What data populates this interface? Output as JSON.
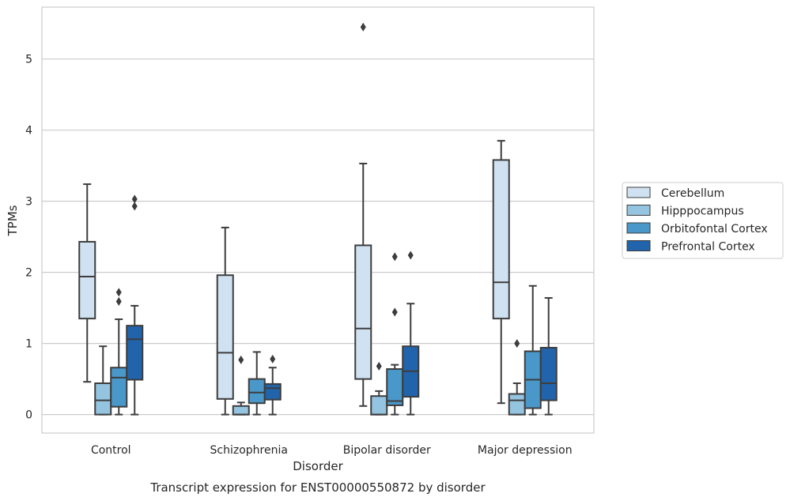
{
  "chart_data": {
    "type": "box",
    "title": "",
    "caption": "Transcript expression for ENST00000550872 by disorder",
    "xlabel": "Disorder",
    "ylabel": "TPMs",
    "ylim": [
      -0.26,
      5.73
    ],
    "yticks": [
      0,
      1,
      2,
      3,
      4,
      5
    ],
    "grid": true,
    "legend_position": "right",
    "categories": [
      "Control",
      "Schizophrenia",
      "Bipolar disorder",
      "Major depression"
    ],
    "series": [
      {
        "name": "Cerebellum",
        "color": "#d0e1f2",
        "boxes": [
          {
            "whisker_low": 0.46,
            "q1": 1.35,
            "median": 1.94,
            "q3": 2.43,
            "whisker_high": 3.24,
            "outliers": []
          },
          {
            "whisker_low": 0.0,
            "q1": 0.22,
            "median": 0.87,
            "q3": 1.96,
            "whisker_high": 2.63,
            "outliers": []
          },
          {
            "whisker_low": 0.12,
            "q1": 0.5,
            "median": 1.21,
            "q3": 2.38,
            "whisker_high": 3.53,
            "outliers": [
              5.45
            ]
          },
          {
            "whisker_low": 0.16,
            "q1": 1.35,
            "median": 1.86,
            "q3": 3.58,
            "whisker_high": 3.85,
            "outliers": []
          }
        ]
      },
      {
        "name": "Hipppocampus",
        "color": "#94c4df",
        "boxes": [
          {
            "whisker_low": 0.0,
            "q1": 0.0,
            "median": 0.2,
            "q3": 0.44,
            "whisker_high": 0.96,
            "outliers": []
          },
          {
            "whisker_low": 0.0,
            "q1": 0.0,
            "median": 0.0,
            "q3": 0.12,
            "whisker_high": 0.17,
            "outliers": [
              0.77
            ]
          },
          {
            "whisker_low": 0.0,
            "q1": 0.0,
            "median": 0.0,
            "q3": 0.26,
            "whisker_high": 0.33,
            "outliers": [
              0.68
            ]
          },
          {
            "whisker_low": 0.0,
            "q1": 0.0,
            "median": 0.2,
            "q3": 0.29,
            "whisker_high": 0.44,
            "outliers": [
              1.0
            ]
          }
        ]
      },
      {
        "name": "Orbitofontal Cortex",
        "color": "#4a98c9",
        "boxes": [
          {
            "whisker_low": 0.0,
            "q1": 0.11,
            "median": 0.52,
            "q3": 0.66,
            "whisker_high": 1.34,
            "outliers": [
              1.59,
              1.72
            ]
          },
          {
            "whisker_low": 0.0,
            "q1": 0.16,
            "median": 0.31,
            "q3": 0.5,
            "whisker_high": 0.88,
            "outliers": []
          },
          {
            "whisker_low": 0.0,
            "q1": 0.13,
            "median": 0.19,
            "q3": 0.64,
            "whisker_high": 0.7,
            "outliers": [
              1.44,
              2.22
            ]
          },
          {
            "whisker_low": 0.0,
            "q1": 0.09,
            "median": 0.49,
            "q3": 0.89,
            "whisker_high": 1.81,
            "outliers": []
          }
        ]
      },
      {
        "name": "Prefrontal Cortex",
        "color": "#2164ab",
        "boxes": [
          {
            "whisker_low": 0.0,
            "q1": 0.49,
            "median": 1.06,
            "q3": 1.25,
            "whisker_high": 1.53,
            "outliers": [
              2.93,
              3.03
            ]
          },
          {
            "whisker_low": 0.0,
            "q1": 0.21,
            "median": 0.37,
            "q3": 0.43,
            "whisker_high": 0.66,
            "outliers": [
              0.78
            ]
          },
          {
            "whisker_low": 0.0,
            "q1": 0.25,
            "median": 0.61,
            "q3": 0.96,
            "whisker_high": 1.56,
            "outliers": [
              2.24
            ]
          },
          {
            "whisker_low": 0.0,
            "q1": 0.2,
            "median": 0.44,
            "q3": 0.94,
            "whisker_high": 1.64,
            "outliers": []
          }
        ]
      }
    ]
  }
}
